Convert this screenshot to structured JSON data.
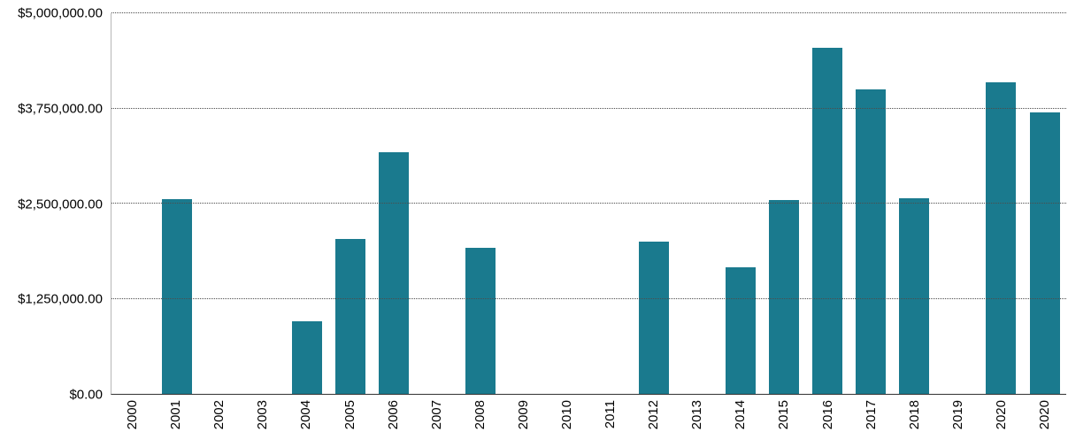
{
  "chart_data": {
    "type": "bar",
    "title": "",
    "xlabel": "",
    "ylabel": "",
    "categories": [
      "2000",
      "2001",
      "2002",
      "2003",
      "2004",
      "2005",
      "2006",
      "2007",
      "2008",
      "2009",
      "2010",
      "2011",
      "2012",
      "2013",
      "2014",
      "2015",
      "2016",
      "2017",
      "2018",
      "2019",
      "2020",
      "2020"
    ],
    "values": [
      0,
      2560000,
      0,
      0,
      950000,
      2030000,
      3180000,
      0,
      1920000,
      0,
      0,
      0,
      2000000,
      0,
      1660000,
      2550000,
      4550000,
      4000000,
      2570000,
      0,
      4090000,
      3700000
    ],
    "ylim": [
      0,
      5000000
    ],
    "yticks": [
      0,
      1250000,
      2500000,
      3750000,
      5000000
    ],
    "ytick_labels": [
      "$0.00",
      "$1,250,000.00",
      "$2,500,000.00",
      "$3,750,000.00",
      "$5,000,000.00"
    ],
    "bar_color": "#1a7a8e",
    "grid": true,
    "gridline_style": "dotted",
    "legend_position": "none",
    "x_label_rotation": 90
  }
}
